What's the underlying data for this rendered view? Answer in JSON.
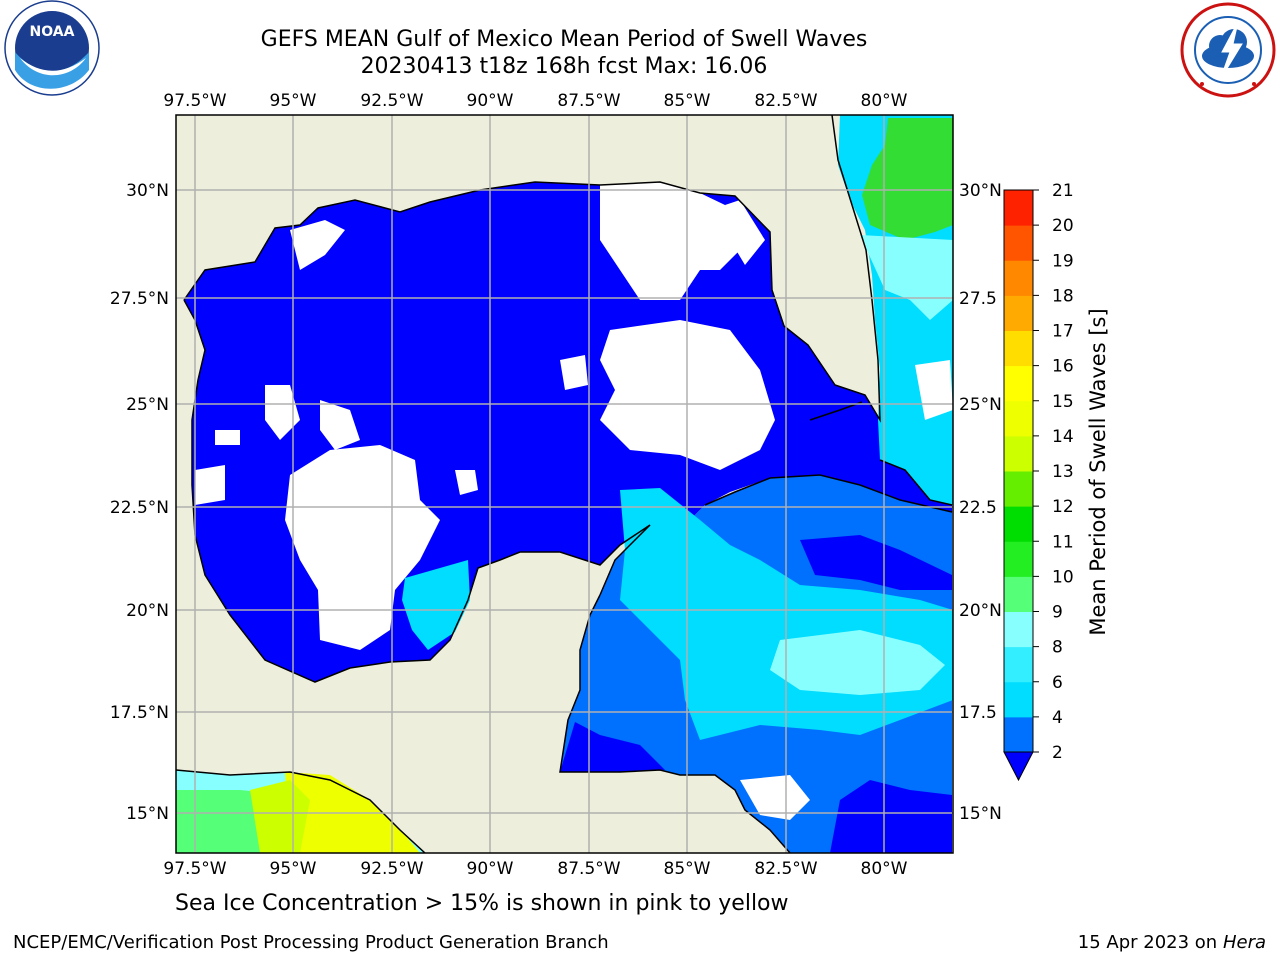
{
  "title_line1": "GEFS MEAN Gulf of Mexico Mean Period of Swell Waves",
  "title_line2": "20230413 t18z 168h fcst   Max: 16.06",
  "lon_labels": [
    "97.5°W",
    "95°W",
    "92.5°W",
    "90°W",
    "87.5°W",
    "85°W",
    "82.5°W",
    "80°W"
  ],
  "lat_labels_left": [
    "30°N",
    "27.5°N",
    "25°N",
    "22.5°N",
    "20°N",
    "17.5°N",
    "15°N"
  ],
  "lat_labels_right": [
    "30°N",
    "27.5",
    "25°N",
    "22.5",
    "20°N",
    "17.5",
    "15°N"
  ],
  "colorbar": {
    "label": "Mean Period of Swell Waves [s]",
    "ticks": [
      "2",
      "4",
      "6",
      "8",
      "9",
      "10",
      "11",
      "12",
      "13",
      "14",
      "15",
      "16",
      "17",
      "18",
      "19",
      "20",
      "21"
    ],
    "colors": [
      "#0000ff",
      "#0070ff",
      "#00ddff",
      "#33eeff",
      "#88ffff",
      "#55ff77",
      "#22ee22",
      "#00dd00",
      "#66ee00",
      "#ccff00",
      "#eeff00",
      "#ffff00",
      "#ffdd00",
      "#ffaa00",
      "#ff8800",
      "#ff5500",
      "#ff2200",
      "#ff0000"
    ],
    "under_color": "#0000ff"
  },
  "ice_note": "Sea Ice Concentration > 15% is shown in pink to yellow",
  "footer_left": "NCEP/EMC/Verification Post Processing Product Generation Branch",
  "footer_right_date": "15 Apr 2023 on ",
  "footer_right_host": "Hera",
  "map_colors": {
    "land": "#eeeedd",
    "grid": "#b0b0b0"
  },
  "logos": {
    "left": "NOAA",
    "right": "NATIONAL WEATHER SERVICE"
  }
}
